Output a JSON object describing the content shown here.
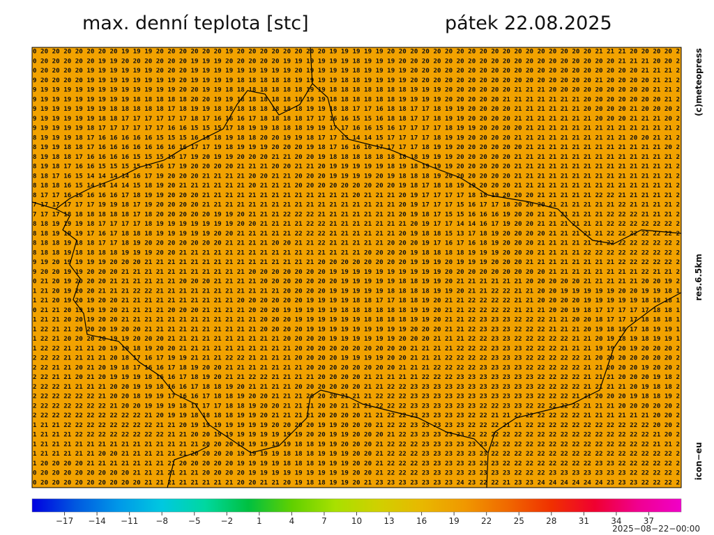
{
  "header": {
    "title": "max. denní teplota [stc]",
    "date": "pátek 22.08.2025"
  },
  "side_labels": {
    "copyright": "(c)meteopress",
    "resolution": "res.6.5km",
    "model": "icon−eu"
  },
  "timestamp": "2025−08−22−00:00",
  "map": {
    "background": "#f2a200",
    "rows": [
      "0 20 20 20 20 20 20 20 19 19 19 20 20 20 20 20 20 19 20 20 20 20 20 20 20 20 19 19 19 19 19 20 20 20 20 20 20 20 20 20 20 20 20 20 20 20 20 20 20 21 21 21 20 20 20 20 2",
      "0 20 20 20 20 20 19 19 20 20 20 20 20 20 19 19 19 20 20 20 20 20 19 19 19 19 19 19 18 19 19 19 20 20 20 20 20 20 20 20 20 20 20 20 20 20 20 20 20 20 20 21 21 21 20 20 2",
      "0 20 20 20 20 19 19 19 19 19 19 20 20 20 19 19 19 19 19 19 19 19 19 20 19 19 19 19 18 19 19 19 19 20 20 20 20 20 20 20 20 20 20 20 20 20 20 20 20 20 20 20 20 21 21 21 2",
      "9 20 20 20 20 19 19 19 19 19 19 19 19 20 19 19 19 19 18 18 18 18 18 19 19 19 19 18 18 19 19 19 19 20 20 20 20 20 20 20 20 20 20 20 20 20 20 20 20 21 20 20 20 20 21 21 2",
      "9 19 19 19 19 19 19 19 19 19 19 19 19 20 20 19 19 18 18 18 18 18 18 18 19 19 18 18 18 18 18 18 18 19 19 19 20 20 20 20 20 20 21 21 21 20 20 20 20 20 20 20 20 20 21 21 2",
      "9 19 19 19 19 19 19 19 19 18 18 18 18 18 20 20 19 19 18 18 18 18 18 18 19 19 18 18 18 18 18 18 19 19 19 19 20 20 20 20 20 21 21 21 21 21 21 21 20 20 20 20 20 20 20 21 2",
      "9 19 19 19 19 19 19 18 18 18 18 18 17 18 19 19 18 18 18 18 18 18 18 18 19 19 18 18 17 17 16 18 18 17 17 18 19 19 20 20 20 20 21 21 21 21 21 21 20 20 20 20 21 20 20 20 2",
      "9 19 19 19 19 19 18 18 17 17 17 17 17 17 18 17 16 16 16 17 18 18 18 18 17 17 16 16 15 15 16 18 18 17 17 18 19 19 20 20 20 20 21 21 21 21 21 21 21 20 20 20 21 21 21 20 2",
      "9 19 19 19 19 18 17 17 17 17 17 17 16 16 15 15 15 17 18 19 19 18 18 18 19 19 17 17 16 16 15 16 17 17 17 17 18 19 19 20 20 20 20 21 21 21 21 21 21 21 21 21 21 21 21 21 2",
      "8 19 19 19 18 17 16 16 16 16 16 15 15 15 16 18 18 19 18 18 20 20 19 19 18 17 17 15 14 14 15 17 17 17 17 18 19 19 20 20 20 20 21 21 21 21 21 21 21 21 21 21 20 20 21 21 2",
      "8 19 19 18 18 17 16 16 16 16 16 16 16 16 17 17 19 18 19 19 19 20 20 20 19 18 17 16 16 16 17 17 17 17 18 19 19 20 20 20 20 20 20 21 21 21 21 21 21 21 21 21 21 21 21 20 2",
      "8 19 18 18 17 16 16 16 16 15 15 15 16 17 19 20 19 19 20 20 20 21 21 20 20 19 18 18 18 18 18 18 18 18 19 19 19 20 20 20 20 20 21 21 21 21 21 21 21 21 21 21 21 21 21 21 2",
      "8 19 18 17 16 16 15 15 15 15 15 16 17 19 20 20 20 20 21 21 21 20 20 21 21 20 19 19 19 19 19 18 19 18 19 19 19 20 20 20 20 20 21 21 21 21 21 21 21 21 21 21 21 21 21 21 2",
      "8 18 17 16 15 14 14 14 14 16 17 19 20 20 20 21 21 21 21 20 20 21 21 20 20 20 19 19 19 19 20 19 18 18 18 19 20 20 20 20 20 20 21 21 21 21 21 21 21 21 21 21 21 21 21 21 2",
      "8 18 18 16 15 14 14 14 14 15 18 19 20 21 21 21 21 21 21 20 21 21 21 20 20 20 20 20 20 20 20 20 19 18 17 18 18 19 19 20 20 20 21 21 21 21 21 21 21 21 21 21 21 21 21 21 2",
      "8 17 17 16 16 16 16 16 17 18 19 19 20 20 20 21 21 21 21 21 21 21 21 21 21 21 21 21 20 21 21 21 20 19 17 17 17 17 18 18 19 20 20 20 21 21 21 21 21 22 22 21 21 21 21 21 2",
      "7 17 17 17 17 17 19 19 18 17 19 20 20 20 20 21 21 21 21 21 21 21 21 21 21 21 21 21 21 21 21 21 20 19 17 17 17 15 16 17 17 18 20 20 20 21 21 21 21 21 21 22 21 21 21 21 2",
      "7 17 17 18 18 18 18 18 18 17 18 20 20 20 20 20 19 19 20 21 21 21 22 22 22 21 21 21 21 21 21 21 20 19 18 17 15 15 16 16 16 19 20 20 21 21 21 21 21 21 22 22 22 21 21 21 2",
      "8 18 19 19 19 18 17 17 17 17 18 19 19 19 19 19 19 19 20 20 21 21 21 21 22 22 21 21 21 21 21 21 21 20 19 17 17 14 14 16 17 19 20 20 21 21 21 21 21 21 22 22 22 22 22 22 2",
      "8 18 19 19 19 17 16 17 18 18 18 19 19 19 19 19 20 20 21 21 21 21 21 22 22 22 21 21 21 21 21 21 20 19 18 18 15 13 17 18 19 20 20 20 20 21 21 21 21 21 22 22 22 22 22 22 2",
      "8 18 18 19 18 18 17 17 18 19 20 20 20 20 20 20 20 21 21 21 21 20 20 21 21 22 21 21 21 21 21 20 20 20 19 17 16 17 16 18 19 20 20 20 21 21 21 21 21 21 22 22 22 22 22 22 2",
      "8 18 18 19 18 18 18 18 19 19 19 20 20 21 21 21 21 21 21 21 21 21 21 21 21 21 21 21 21 20 20 20 20 19 18 18 18 18 19 19 19 20 20 20 21 21 21 21 22 22 22 22 22 22 22 22 2",
      "9 19 20 19 19 19 19 20 20 20 21 21 21 21 21 21 21 21 21 21 21 21 21 21 21 20 20 20 20 20 20 20 20 19 19 19 20 19 19 19 20 20 20 21 21 21 21 21 21 21 21 22 22 22 22 22 2",
      "9 20 20 19 19 20 20 20 21 21 21 21 21 21 21 21 21 21 21 20 20 20 20 20 20 20 19 19 19 19 19 19 19 19 19 19 20 20 20 20 20 20 20 20 20 21 21 21 21 21 21 21 21 22 21 21 2",
      "0 21 20 19 20 20 20 21 21 21 21 21 21 20 20 20 21 21 21 21 20 20 20 20 20 20 20 19 19 19 19 19 18 18 19 19 20 21 21 21 21 21 21 20 20 20 20 20 21 21 21 21 21 20 20 19 2",
      "1 21 20 19 20 20 21 21 21 22 22 21 21 21 21 21 21 21 21 21 21 21 20 20 20 20 19 19 19 19 19 18 18 18 18 19 19 20 21 21 22 22 21 21 20 20 19 19 19 19 19 20 20 19 19 18 1",
      "1 21 20 19 20 19 20 20 21 21 21 21 21 21 21 21 21 21 20 20 20 20 20 20 19 19 19 19 18 18 17 17 18 18 19 20 21 21 22 22 22 22 21 21 20 20 20 20 19 19 19 19 19 18 18 18 1",
      "0 21 21 20 19 19 19 20 21 21 21 21 20 20 20 21 21 21 21 20 20 20 19 19 19 19 19 18 18 18 18 18 18 19 19 20 21 21 22 22 22 22 21 21 21 20 20 19 18 17 17 17 17 17 18 18 1",
      "1 21 21 20 20 19 20 20 21 21 21 21 21 21 21 21 21 21 21 21 20 20 20 19 19 19 19 19 19 18 18 18 18 19 19 20 21 21 22 23 23 23 22 22 22 21 21 20 20 18 17 17 17 18 18 18 1",
      "1 22 21 21 20 20 20 19 20 20 21 21 21 21 21 21 21 21 21 21 20 20 20 20 19 19 19 19 19 19 19 19 19 20 20 20 21 21 22 23 23 23 22 22 22 21 21 21 20 19 18 18 17 18 19 19 1",
      "1 22 21 20 20 20 20 19 19 20 20 20 21 21 21 21 21 21 21 21 21 21 20 20 20 20 19 19 19 19 19 19 20 20 20 21 21 21 22 22 23 23 22 22 22 22 22 21 21 20 19 18 19 18 19 19 1",
      "1 22 22 21 21 21 20 19 19 18 19 20 20 21 21 21 21 21 21 21 21 21 21 20 20 20 20 20 20 20 20 20 20 21 21 21 21 22 22 22 23 23 23 22 22 22 21 21 21 19 19 20 19 20 20 20 2",
      "2 22 22 21 21 21 21 20 18 17 16 17 19 19 21 21 21 22 22 21 21 21 21 20 20 20 20 19 19 19 19 20 20 21 21 21 22 22 22 22 23 23 23 22 22 22 22 22 21 20 20 20 20 20 20 20 2",
      "2 22 21 21 20 21 20 19 18 17 16 16 17 18 19 20 20 21 21 21 21 21 21 21 20 20 20 20 20 20 20 20 21 21 21 22 22 22 22 23 23 23 23 22 22 22 22 22 21 21 20 20 20 19 20 20 2",
      "2 22 21 21 20 21 20 19 19 19 18 16 16 17 18 19 20 21 21 22 22 21 21 21 21 20 20 20 20 21 21 21 21 21 22 22 22 23 23 23 23 23 23 23 22 22 22 22 21 21 21 20 20 20 19 18 2",
      "2 22 22 21 21 21 21 20 20 19 19 18 16 16 17 18 18 19 20 21 21 21 21 20 20 20 20 20 20 21 21 22 22 23 23 23 23 23 23 23 23 23 23 23 22 22 22 22 21 21 21 21 20 19 18 18 2",
      "2 22 22 22 22 22 21 20 20 18 19 19 17 16 16 17 18 18 19 20 20 21 21 21 20 20 20 21 21 21 22 22 22 23 23 23 23 23 23 23 23 23 23 23 22 22 22 21 21 20 20 20 19 18 18 19 2",
      "2 22 22 22 22 22 22 21 20 20 19 19 19 18 17 17 17 18 18 19 20 20 21 21 21 20 20 21 21 21 22 22 22 23 23 23 23 23 23 22 22 23 23 22 22 22 22 22 21 21 21 20 20 20 20 20 2",
      "2 22 22 22 22 22 22 22 22 22 21 20 19 19 18 18 18 18 19 19 20 21 21 21 21 20 20 20 20 21 21 22 22 23 23 23 23 23 22 22 21 21 22 22 22 22 22 22 21 21 21 21 21 21 20 20 2",
      "1 21 21 22 22 22 22 22 22 22 22 21 21 20 19 19 19 19 19 19 19 20 20 20 20 19 19 20 20 20 21 22 22 23 23 23 23 23 22 22 22 21 21 22 22 22 22 22 22 22 22 22 22 22 20 20 2",
      "1 21 21 21 22 22 22 22 22 22 22 22 21 21 20 20 19 19 19 19 19 19 19 19 20 20 19 19 20 20 20 21 22 23 23 23 23 23 22 22 22 22 22 22 22 22 22 22 22 22 22 22 22 22 21 20 2",
      "1 21 21 21 21 21 21 21 21 21 21 21 21 21 21 20 20 20 19 19 19 19 19 18 18 19 19 20 20 20 21 22 22 22 23 23 23 23 23 23 22 22 22 22 22 22 22 22 22 22 22 22 22 22 21 21 2",
      "1 21 21 21 21 21 20 20 21 21 21 21 21 21 20 20 20 20 19 19 19 19 18 18 18 19 19 19 20 20 21 22 22 22 23 23 23 23 23 23 22 22 22 22 22 22 22 22 22 22 22 22 22 22 22 22 2",
      "1 20 20 20 20 21 21 21 21 21 21 21 21 20 20 20 20 20 19 19 19 19 18 18 18 19 19 19 20 20 21 22 22 22 23 23 23 23 23 23 23 22 22 22 22 22 22 22 22 23 23 22 22 22 22 22 2",
      "0 20 20 20 20 20 20 20 20 21 21 21 21 21 21 20 20 20 20 19 19 19 19 19 19 19 19 19 20 20 21 22 22 22 23 23 23 23 23 23 23 23 22 22 22 23 23 23 23 23 23 23 22 22 22 22 2",
      "0 20 20 20 20 20 20 20 20 20 21 21 21 21 21 21 21 21 20 20 21 21 20 19 18 18 19 19 20 21 23 23 23 23 23 23 23 24 23 22 22 21 23 23 24 24 24 24 24 24 23 23 23 22 22 22 2"
    ]
  },
  "colorbar": {
    "range": [
      -20,
      40
    ],
    "colors": [
      "#0000e0",
      "#0058e0",
      "#0098e8",
      "#00c8e0",
      "#00d8a0",
      "#00c040",
      "#60d000",
      "#a8e000",
      "#d0d000",
      "#e8b800",
      "#f09800",
      "#f06800",
      "#f03000",
      "#f00030",
      "#f00090",
      "#f000c8"
    ],
    "ticks": [
      {
        "value": -17,
        "label": "−17"
      },
      {
        "value": -14,
        "label": "−14"
      },
      {
        "value": -11,
        "label": "−11"
      },
      {
        "value": -8,
        "label": "−8"
      },
      {
        "value": -5,
        "label": "−5"
      },
      {
        "value": -2,
        "label": "−2"
      },
      1,
      4,
      7,
      10,
      13,
      16,
      19,
      22,
      25,
      28,
      31,
      34,
      37
    ]
  }
}
